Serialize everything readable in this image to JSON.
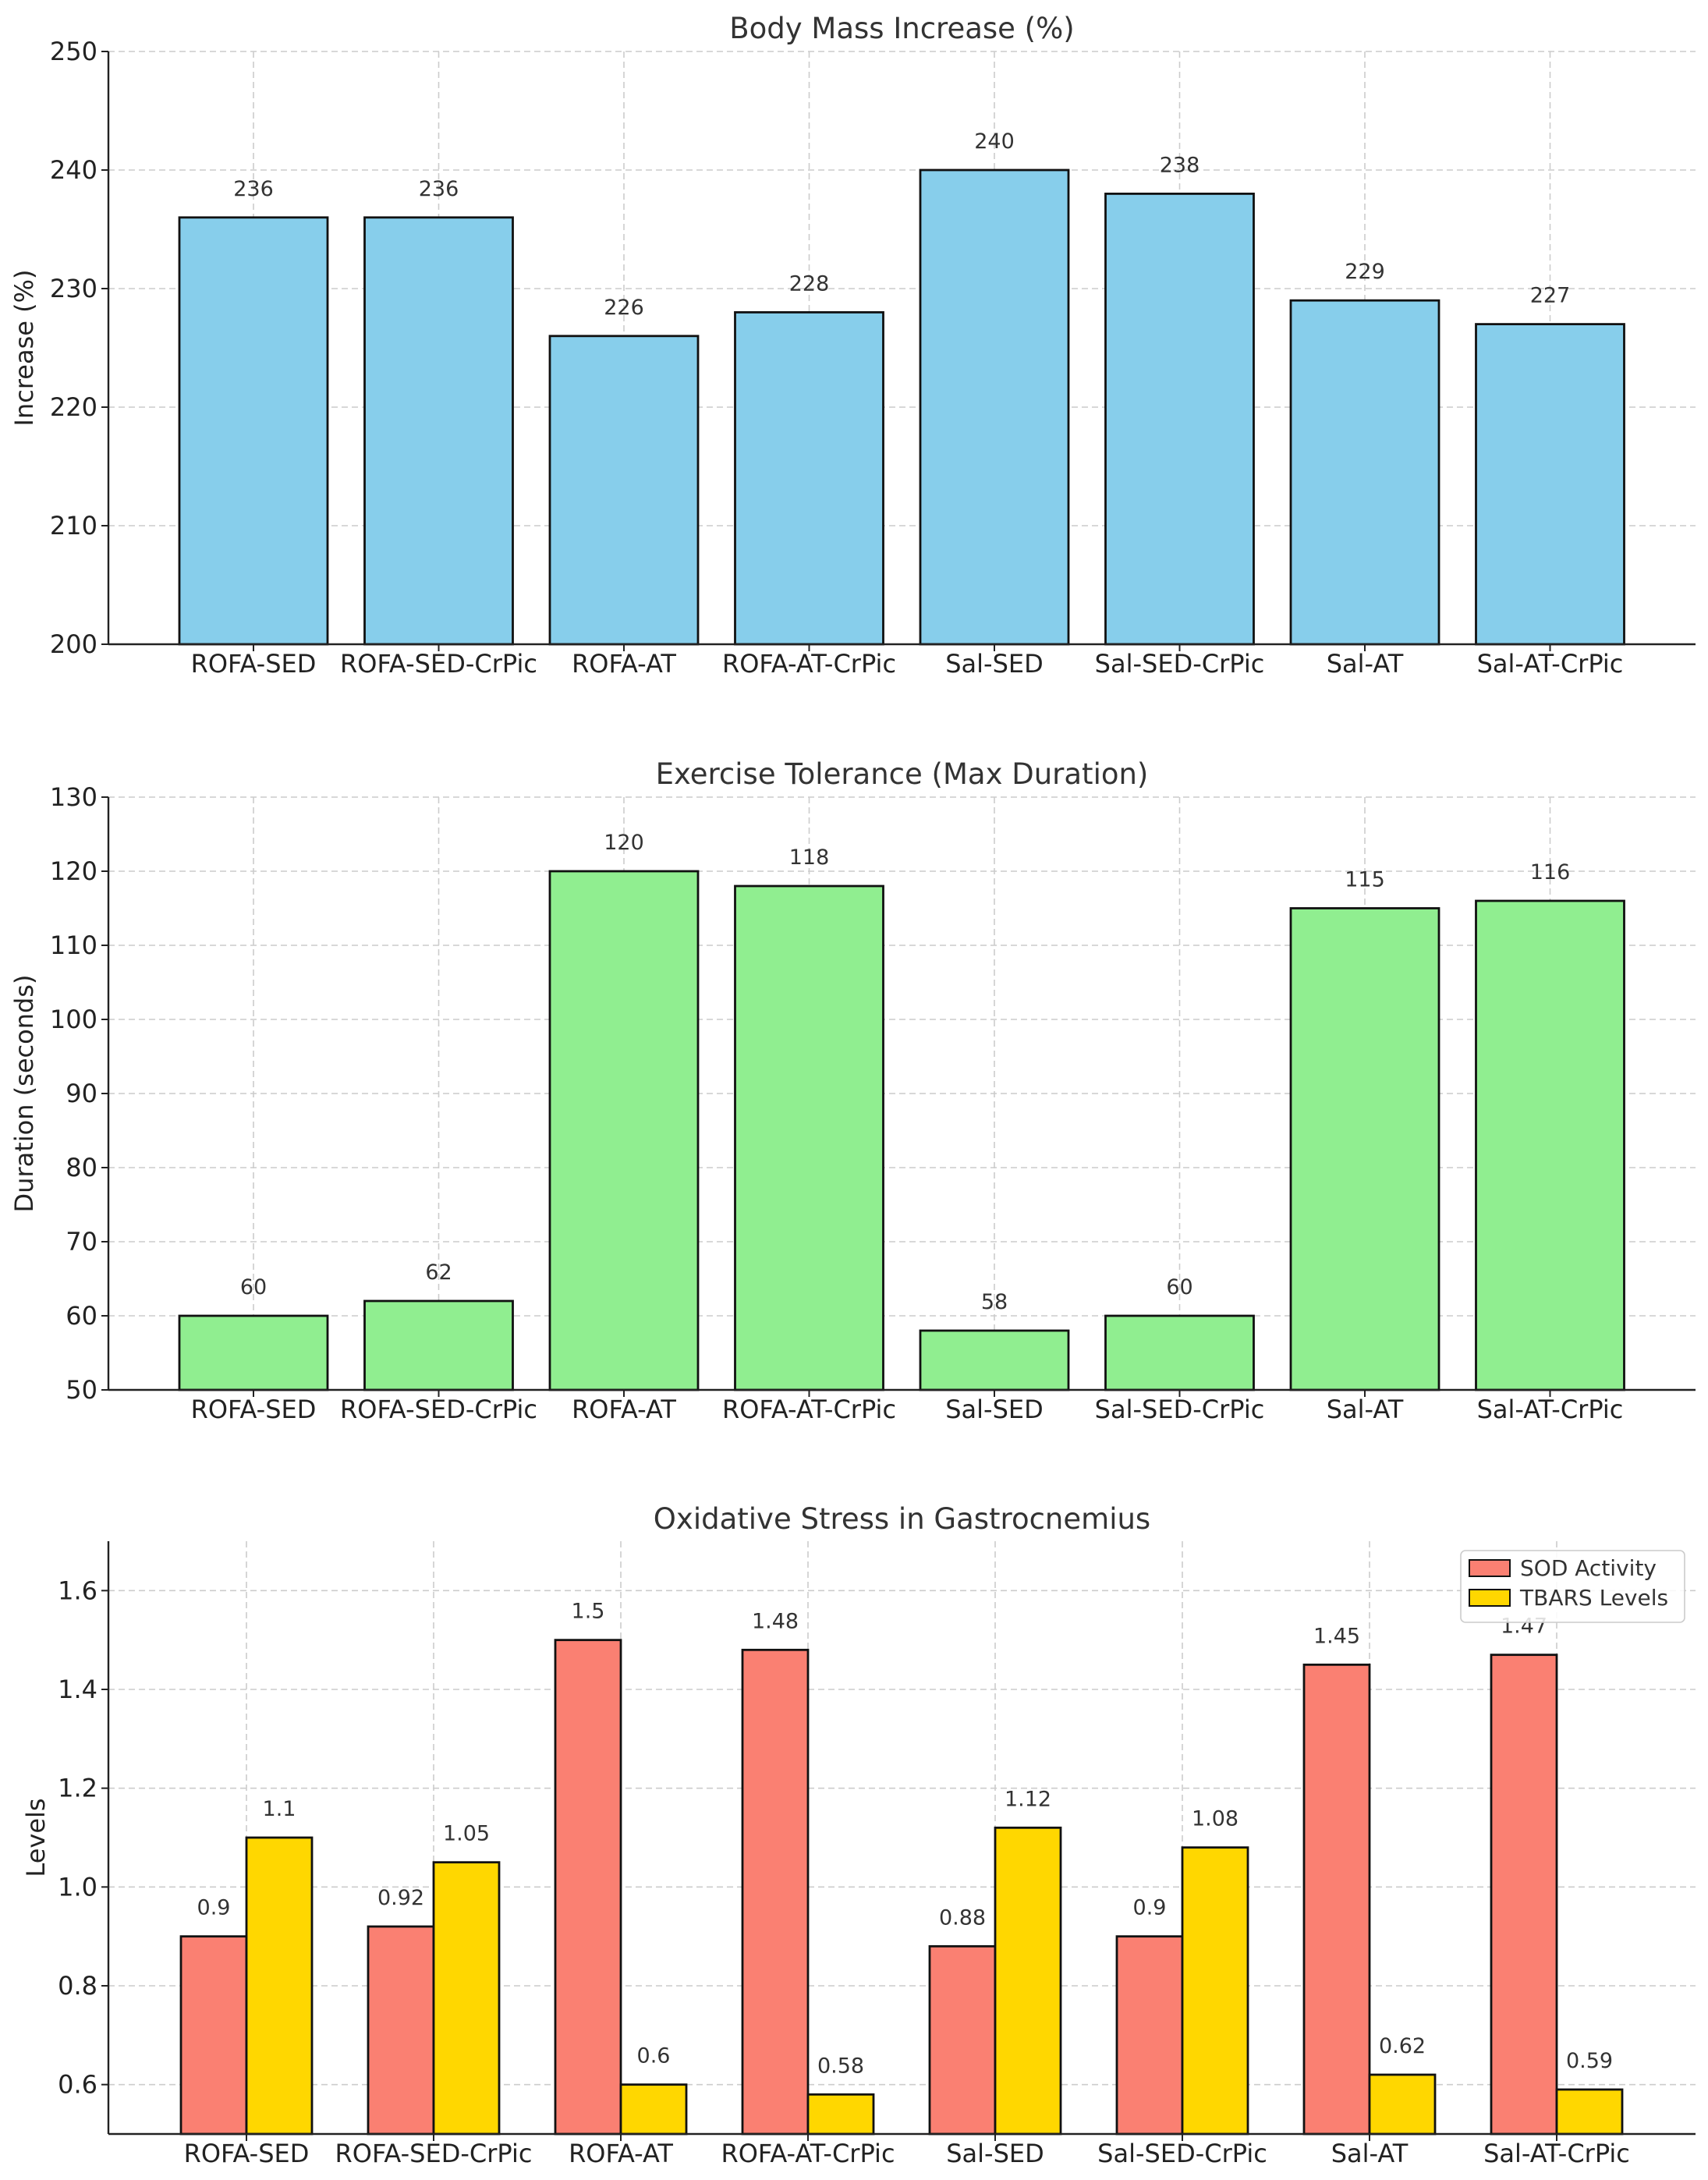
{
  "chart_data": [
    {
      "type": "bar",
      "title": "Body Mass Increase (%)",
      "xlabel": "",
      "ylabel": "Increase (%)",
      "ylim": [
        200,
        250
      ],
      "yticks": [
        200,
        210,
        220,
        230,
        240,
        250
      ],
      "grid": true,
      "categories": [
        "ROFA-SED",
        "ROFA-SED-CrPic",
        "ROFA-AT",
        "ROFA-AT-CrPic",
        "Sal-SED",
        "Sal-SED-CrPic",
        "Sal-AT",
        "Sal-AT-CrPic"
      ],
      "series": [
        {
          "name": "Body Mass Increase",
          "color": "#87CEEB",
          "values": [
            236,
            236,
            226,
            228,
            240,
            238,
            229,
            227
          ]
        }
      ]
    },
    {
      "type": "bar",
      "title": "Exercise Tolerance (Max Duration)",
      "xlabel": "",
      "ylabel": "Duration (seconds)",
      "ylim": [
        50,
        130
      ],
      "yticks": [
        50,
        60,
        70,
        80,
        90,
        100,
        110,
        120,
        130
      ],
      "grid": true,
      "categories": [
        "ROFA-SED",
        "ROFA-SED-CrPic",
        "ROFA-AT",
        "ROFA-AT-CrPic",
        "Sal-SED",
        "Sal-SED-CrPic",
        "Sal-AT",
        "Sal-AT-CrPic"
      ],
      "series": [
        {
          "name": "Max Duration",
          "color": "#90EE90",
          "values": [
            60,
            62,
            120,
            118,
            58,
            60,
            115,
            116
          ]
        }
      ]
    },
    {
      "type": "bar",
      "title": "Oxidative Stress in Gastrocnemius",
      "xlabel": "",
      "ylabel": "Levels",
      "ylim": [
        0.5,
        1.7
      ],
      "yticks": [
        "0.6",
        "0.8",
        "1.0",
        "1.2",
        "1.4",
        "1.6"
      ],
      "grid": true,
      "legend_position": "top-right",
      "categories": [
        "ROFA-SED",
        "ROFA-SED-CrPic",
        "ROFA-AT",
        "ROFA-AT-CrPic",
        "Sal-SED",
        "Sal-SED-CrPic",
        "Sal-AT",
        "Sal-AT-CrPic"
      ],
      "series": [
        {
          "name": "SOD Activity",
          "color": "#FA8072",
          "values": [
            0.9,
            0.92,
            1.5,
            1.48,
            0.88,
            0.9,
            1.45,
            1.47
          ]
        },
        {
          "name": "TBARS Levels",
          "color": "#FFD700",
          "values": [
            1.1,
            1.05,
            0.6,
            0.58,
            1.12,
            1.08,
            0.62,
            0.59
          ]
        }
      ]
    }
  ]
}
